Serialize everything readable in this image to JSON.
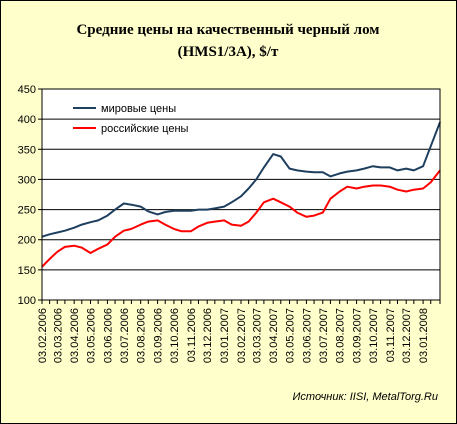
{
  "chart_data": {
    "type": "line",
    "title": "Средние цены на качественный черный лом",
    "subtitle": "(HMS1/3A), $/т",
    "ylim": [
      100,
      450
    ],
    "yticks": [
      100,
      150,
      200,
      250,
      300,
      350,
      400,
      450
    ],
    "grid": "horizontal",
    "legend_placement": "top-left",
    "source": "Источник: IISI, MetalTorg.Ru",
    "x_dates": [
      "2006-02-03",
      "2006-02-17",
      "2006-03-03",
      "2006-03-17",
      "2006-04-03",
      "2006-04-17",
      "2006-05-03",
      "2006-05-17",
      "2006-06-03",
      "2006-06-17",
      "2006-07-03",
      "2006-07-17",
      "2006-08-03",
      "2006-08-17",
      "2006-09-03",
      "2006-09-17",
      "2006-10-03",
      "2006-10-17",
      "2006-11-03",
      "2006-11-17",
      "2006-12-03",
      "2006-12-17",
      "2007-01-03",
      "2007-01-17",
      "2007-02-03",
      "2007-02-17",
      "2007-03-03",
      "2007-03-17",
      "2007-04-03",
      "2007-04-17",
      "2007-05-03",
      "2007-05-17",
      "2007-06-03",
      "2007-06-17",
      "2007-07-03",
      "2007-07-17",
      "2007-08-03",
      "2007-08-17",
      "2007-09-03",
      "2007-09-17",
      "2007-10-03",
      "2007-10-17",
      "2007-11-03",
      "2007-11-17",
      "2007-12-03",
      "2007-12-17",
      "2008-01-03",
      "2008-01-17",
      "2008-02-03"
    ],
    "x_ticks": [
      "03.02.2006",
      "03.03.2006",
      "03.04.2006",
      "03.05.2006",
      "03.06.2006",
      "03.07.2006",
      "03.08.2006",
      "03.09.2006",
      "03.10.2006",
      "03.11.2006",
      "03.12.2006",
      "03.01.2007",
      "03.02.2007",
      "03.03.2007",
      "03.04.2007",
      "03.05.2007",
      "03.06.2007",
      "03.07.2007",
      "03.08.2007",
      "03.09.2007",
      "03.10.2007",
      "03.11.2007",
      "03.12.2007",
      "03.01.2008"
    ],
    "series": [
      {
        "name": "мировые цены",
        "color": "#1f3f5f",
        "values": [
          205,
          209,
          212,
          215,
          220,
          225,
          229,
          232,
          240,
          250,
          260,
          258,
          255,
          247,
          242,
          246,
          248,
          248,
          248,
          250,
          250,
          252,
          255,
          262,
          272,
          285,
          300,
          320,
          342,
          338,
          318,
          315,
          313,
          312,
          312,
          305,
          310,
          313,
          315,
          318,
          322,
          320,
          320,
          315,
          318,
          315,
          322,
          355,
          395
        ]
      },
      {
        "name": "российские цены",
        "color": "#ff0000",
        "values": [
          155,
          168,
          180,
          188,
          190,
          187,
          178,
          185,
          192,
          205,
          215,
          218,
          225,
          230,
          232,
          225,
          218,
          214,
          214,
          222,
          228,
          230,
          232,
          225,
          223,
          230,
          245,
          262,
          268,
          262,
          255,
          245,
          238,
          240,
          245,
          268,
          280,
          288,
          285,
          288,
          290,
          290,
          288,
          283,
          280,
          283,
          285,
          295,
          315
        ]
      }
    ]
  }
}
